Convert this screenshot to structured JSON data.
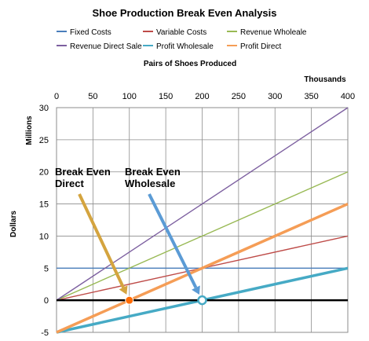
{
  "chart_data": {
    "type": "line",
    "title": "Shoe Production Break Even Analysis",
    "xlabel": "Pairs of Shoes Produced",
    "x_units": "Thousands",
    "ylabel": "Dollars",
    "y_units": "Millions",
    "x_axis_position": "top",
    "xlim": [
      0,
      400
    ],
    "ylim": [
      -5,
      30
    ],
    "x_ticks": [
      0,
      50,
      100,
      150,
      200,
      250,
      300,
      350,
      400
    ],
    "y_ticks": [
      -5,
      0,
      5,
      10,
      15,
      20,
      25,
      30
    ],
    "grid": true,
    "legend_position": "top",
    "x": [
      0,
      400
    ],
    "series": [
      {
        "name": "Fixed Costs",
        "color": "#4a7ebb",
        "values": [
          5,
          5
        ]
      },
      {
        "name": "Variable Costs",
        "color": "#be4b48",
        "values": [
          0,
          10
        ]
      },
      {
        "name": "Revenue Wholeale",
        "color": "#98b954",
        "values": [
          0,
          20
        ]
      },
      {
        "name": "Revenue Direct Sale",
        "color": "#7d60a0",
        "values": [
          0,
          30
        ]
      },
      {
        "name": "Profit Wholesale",
        "color": "#46aac5",
        "values": [
          -5,
          5
        ]
      },
      {
        "name": "Profit Direct",
        "color": "#f59d56",
        "values": [
          -5,
          15
        ]
      }
    ],
    "annotations": [
      {
        "text_lines": [
          "Break Even",
          "Direct"
        ],
        "x": 100,
        "y": 0,
        "marker_color": "#ff6a00",
        "arrow_color": "#d4a43f"
      },
      {
        "text_lines": [
          "Break Even",
          "Wholesale"
        ],
        "x": 200,
        "y": 0,
        "marker_color": "#46aac5",
        "arrow_color": "#5b9bd5"
      }
    ]
  }
}
